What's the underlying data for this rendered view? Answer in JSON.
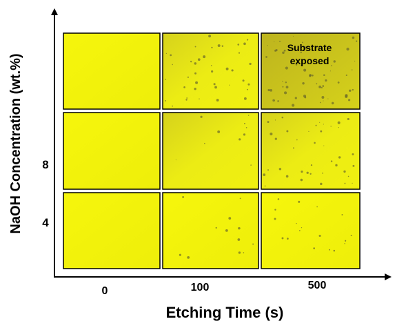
{
  "axes": {
    "y_label": "NaOH Concentration (wt.%)",
    "x_label": "Etching Time (s)",
    "y_ticks": [
      "8",
      "4"
    ],
    "x_ticks": [
      "0",
      "100",
      "500"
    ]
  },
  "annotation": {
    "lines": [
      "Substrate",
      "exposed"
    ]
  }
}
